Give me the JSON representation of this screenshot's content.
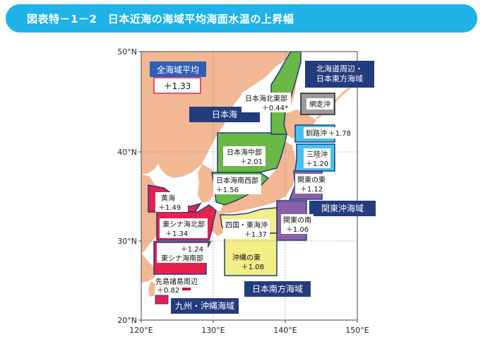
{
  "header": {
    "title": "図表特－1－2　日本近海の海域平均海面水温の上昇幅"
  },
  "axes": {
    "lat_labels": [
      "50°N",
      "40°N",
      "30°N",
      "20°N"
    ],
    "lon_labels": [
      "120°E",
      "130°E",
      "140°E",
      "150°E"
    ]
  },
  "overall": {
    "label": "全海域平均",
    "value": "＋1.33"
  },
  "region_groups": {
    "sea_of_japan": "日本海",
    "north": "北海道周辺・\n日本東方海域",
    "kanto_east": "関東沖海域",
    "south": "日本南方海域",
    "kyushu": "九州・沖縄海域"
  },
  "regions": [
    {
      "id": "sea-of-japan-northeast",
      "name": "日本海北東部",
      "value": "＋0.44*",
      "group": "sea_of_japan"
    },
    {
      "id": "sea-of-japan-central",
      "name": "日本海中部",
      "value": "＋2.01",
      "group": "sea_of_japan"
    },
    {
      "id": "sea-of-japan-southwest",
      "name": "日本海南西部",
      "value": "＋1.56",
      "group": "sea_of_japan"
    },
    {
      "id": "abashiri",
      "name": "網走沖",
      "value": "",
      "group": "north"
    },
    {
      "id": "kushiro",
      "name": "釧路沖",
      "value": "＋1.78",
      "group": "north"
    },
    {
      "id": "sanriku",
      "name": "三陸沖",
      "value": "＋1.20",
      "group": "north"
    },
    {
      "id": "kanto-east",
      "name": "関東の東",
      "value": "＋1.12",
      "group": "kanto_east"
    },
    {
      "id": "kanto-south",
      "name": "関東の南",
      "value": "＋1.06",
      "group": "kanto_east"
    },
    {
      "id": "shikoku-tokai",
      "name": "四国・東海沖",
      "value": "＋1.37",
      "group": "south"
    },
    {
      "id": "okinawa-east",
      "name": "沖縄の東",
      "value": "＋1.08",
      "group": "south"
    },
    {
      "id": "yellow-sea",
      "name": "黄海",
      "value": "＋1.49",
      "group": "kyushu"
    },
    {
      "id": "east-china-north",
      "name": "東シナ海北部",
      "value": "＋1.34",
      "group": "kyushu"
    },
    {
      "id": "east-china-south",
      "name": "東シナ海南部",
      "value": "＋1.24",
      "group": "kyushu"
    },
    {
      "id": "sakishima",
      "name": "先島諸島周辺",
      "value": "＋0.82",
      "group": "kyushu"
    }
  ],
  "colors": {
    "header": "#1fb3e8",
    "land": "#f2b893",
    "sea_of_japan": "#6ab845",
    "north": "#45c3ee",
    "kanto_east": "#8a60a8",
    "south": "#f3ee86",
    "kyushu": "#e5214e",
    "group_box": "#233c7e",
    "overall_box": "#2f60b4"
  }
}
